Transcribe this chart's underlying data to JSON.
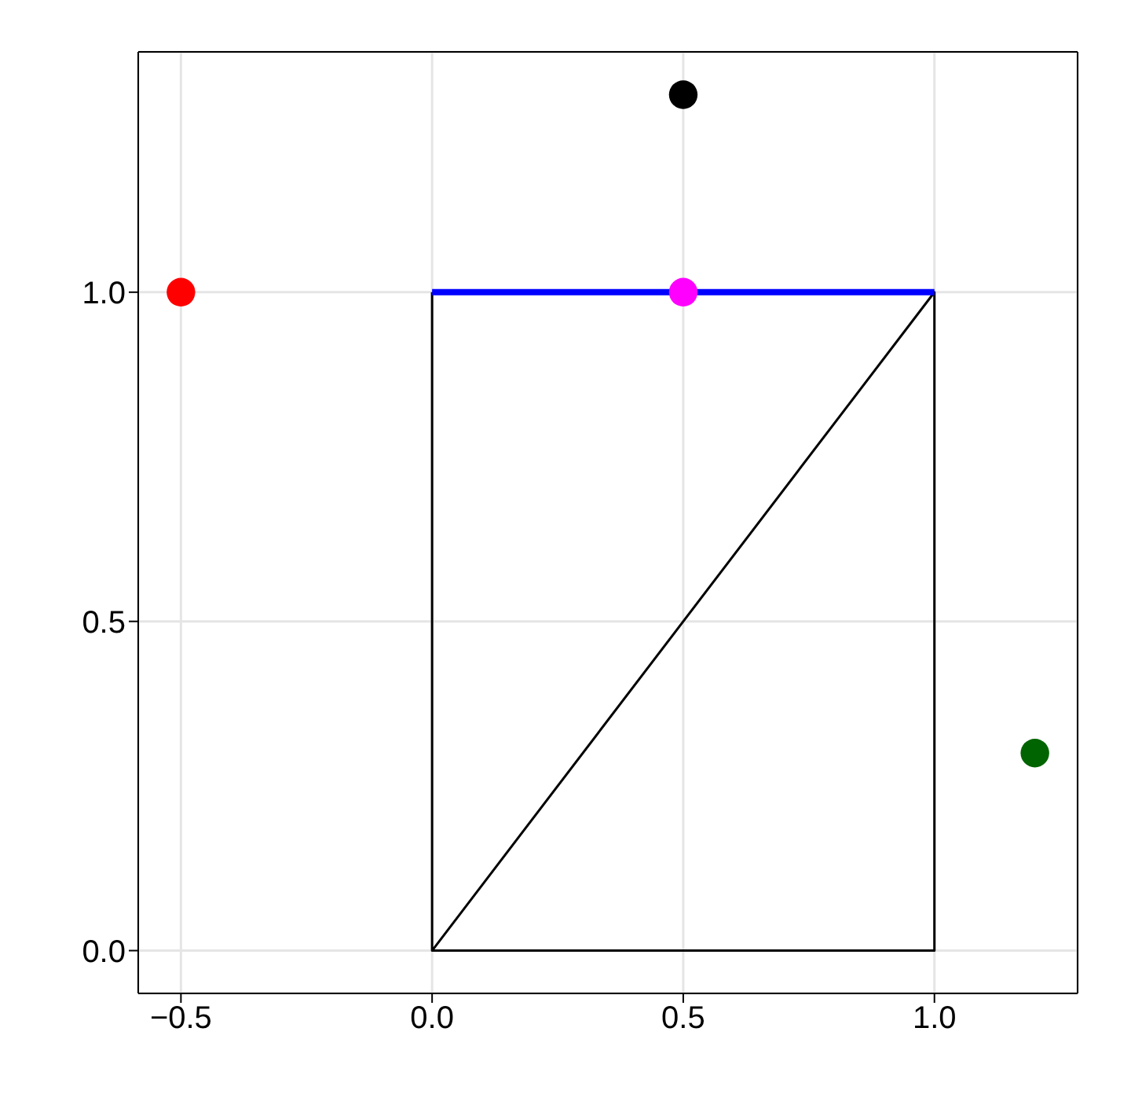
{
  "chart_data": {
    "type": "scatter",
    "xlim": [
      -0.585,
      1.285
    ],
    "ylim": [
      -0.065,
      1.365
    ],
    "xticks": [
      {
        "value": -0.5,
        "label": "−0.5"
      },
      {
        "value": 0,
        "label": "0.0"
      },
      {
        "value": 0.5,
        "label": "0.5"
      },
      {
        "value": 1,
        "label": "1.0"
      }
    ],
    "yticks": [
      {
        "value": 0,
        "label": "0.0"
      },
      {
        "value": 0.5,
        "label": "0.5"
      },
      {
        "value": 1,
        "label": "1.0"
      }
    ],
    "grid": true,
    "series": [
      {
        "type": "line",
        "color": "#000000",
        "x": [
          0,
          0,
          1,
          1,
          0
        ],
        "values": [
          1,
          0,
          0,
          1,
          0
        ]
      },
      {
        "type": "line",
        "color": "#0000ff",
        "x": [
          0,
          1
        ],
        "values": [
          1,
          1
        ]
      },
      {
        "marker": "circle",
        "color": "#ff0000",
        "x": [
          -0.5
        ],
        "values": [
          1
        ]
      },
      {
        "marker": "circle",
        "color": "#000000",
        "x": [
          0.5
        ],
        "values": [
          1.3
        ]
      },
      {
        "marker": "circle",
        "color": "#ff00ff",
        "x": [
          0.5
        ],
        "values": [
          1
        ]
      },
      {
        "marker": "circle",
        "color": "#006400",
        "x": [
          1.2
        ],
        "values": [
          0.3
        ]
      }
    ]
  }
}
